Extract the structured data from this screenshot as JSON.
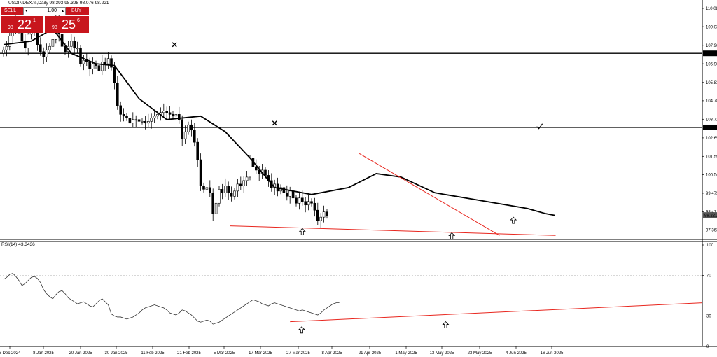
{
  "header": {
    "title": "USDINDEX.fs,Daily  98.393 98.398 98.076 98.221"
  },
  "trade_panel": {
    "sell_label": "SELL",
    "buy_label": "BUY",
    "lot_value": "1.00",
    "lot_down": "▾",
    "lot_up": "▴",
    "sell_big": "98",
    "sell_main": "22",
    "sell_sup": "1",
    "buy_big": "98",
    "buy_main": "25",
    "buy_sup": "6"
  },
  "colors": {
    "accent_red": "#c8161d",
    "trendline": "#e8261e",
    "candle": "#000000",
    "background": "#ffffff"
  },
  "chart_data": [
    {
      "type": "candlestick",
      "symbol": "USDINDEX.fs",
      "timeframe": "Daily",
      "ohlc_readout": [
        98.393,
        98.398,
        98.076,
        98.221
      ],
      "price_labels": [
        "110.08",
        "109.03",
        "107.96",
        "107.50",
        "106.90",
        "105.83",
        "104.78",
        "103.72",
        "103.25",
        "102.65",
        "101.59",
        "100.54",
        "99.475",
        "98.41",
        "98.221",
        "97.363"
      ],
      "horizontal_lines": [
        107.5,
        103.25
      ],
      "x_labels": [
        "6 Dec 2024",
        "8 Jan 2025",
        "20 Jan 2025",
        "30 Jan 2025",
        "11 Feb 2025",
        "21 Feb 2025",
        "5 Mar 2025",
        "17 Mar 2025",
        "27 Mar 2025",
        "8 Apr 2025",
        "21 Apr 2025",
        "1 May 2025",
        "13 May 2025",
        "23 May 2025",
        "4 Jun 2025",
        "16 Jun 2025"
      ],
      "closes": [
        107.7,
        107.9,
        108.5,
        108.9,
        109.3,
        108.8,
        108.2,
        107.8,
        108.6,
        109.1,
        108.7,
        108.0,
        107.6,
        107.3,
        107.7,
        107.9,
        108.3,
        109.5,
        108.6,
        107.9,
        107.6,
        107.9,
        108.2,
        107.8,
        107.8,
        106.9,
        107.1,
        107.0,
        106.6,
        106.9,
        106.8,
        106.5,
        107.0,
        106.9,
        107.2,
        106.7,
        105.8,
        104.5,
        104.0,
        103.9,
        103.8,
        103.5,
        103.7,
        103.7,
        103.6,
        103.6,
        103.5,
        103.6,
        103.8,
        103.9,
        104.0,
        104.1,
        104.2,
        104.1,
        104.0,
        103.9,
        104.0,
        103.7,
        102.6,
        103.0,
        103.4,
        103.1,
        102.4,
        101.4,
        99.9,
        99.7,
        99.8,
        99.5,
        98.3,
        98.9,
        99.7,
        99.5,
        99.9,
        99.5,
        99.3,
        99.6,
        100.0,
        99.9,
        100.2,
        100.4,
        101.5,
        101.0,
        100.8,
        100.6,
        100.8,
        100.5,
        100.2,
        99.8,
        100.0,
        99.6,
        99.8,
        99.5,
        99.3,
        99.6,
        99.2,
        98.9,
        99.2,
        99.0,
        98.8,
        99.0,
        98.9,
        98.5,
        97.9,
        98.1,
        98.4,
        98.2
      ],
      "ma_points": [
        [
          0,
          108.0
        ],
        [
          9,
          108.2
        ],
        [
          16,
          108.9
        ],
        [
          22,
          107.5
        ],
        [
          30,
          106.9
        ],
        [
          36,
          106.8
        ],
        [
          44,
          104.9
        ],
        [
          53,
          103.7
        ],
        [
          64,
          103.9
        ],
        [
          72,
          103.0
        ],
        [
          80,
          101.5
        ],
        [
          88,
          99.8
        ],
        [
          100,
          99.4
        ],
        [
          112,
          99.8
        ],
        [
          121,
          100.6
        ],
        [
          129,
          100.4
        ],
        [
          140,
          99.5
        ],
        [
          150,
          99.2
        ],
        [
          160,
          98.9
        ],
        [
          170,
          98.6
        ],
        [
          176,
          98.3
        ],
        [
          179,
          98.2
        ]
      ],
      "trendlines": [
        {
          "from": [
            73.5,
            97.6
          ],
          "to": [
            179.2,
            97.05
          ]
        },
        {
          "from": [
            115.5,
            101.75
          ],
          "to": [
            161,
            97.05
          ]
        }
      ],
      "markers": [
        {
          "type": "x",
          "bar": 55.5,
          "value": 108.0
        },
        {
          "type": "x",
          "bar": 88,
          "value": 103.5
        },
        {
          "type": "check",
          "bar": 174,
          "value": 103.3
        },
        {
          "type": "up-arrow",
          "bar": 97,
          "value": 97.25
        },
        {
          "type": "up-arrow",
          "bar": 145.5,
          "value": 97.0
        },
        {
          "type": "up-arrow",
          "bar": 165.5,
          "value": 97.9
        }
      ]
    },
    {
      "type": "line",
      "indicator": "RSI(14) 43.3436",
      "y_labels": [
        "100",
        "70",
        "30",
        "0"
      ],
      "levels": [
        70,
        30
      ],
      "rsi": [
        66,
        68,
        71,
        72,
        69,
        65,
        60,
        62,
        65,
        68,
        69,
        67,
        63,
        56,
        52,
        49,
        47,
        51,
        54,
        55,
        52,
        48,
        46,
        44,
        42,
        43,
        44,
        42,
        40,
        39,
        42,
        45,
        47,
        44,
        41,
        32,
        30,
        29,
        29,
        28,
        27,
        28,
        29,
        31,
        33,
        36,
        38,
        39,
        40,
        41,
        40,
        39,
        38,
        36,
        33,
        32,
        31,
        33,
        36,
        35,
        33,
        31,
        28,
        25,
        24,
        25,
        26,
        25,
        22,
        23,
        24,
        26,
        28,
        30,
        32,
        34,
        36,
        38,
        40,
        42,
        44,
        46,
        45,
        44,
        42,
        41,
        40,
        42,
        43,
        42,
        41,
        40,
        39,
        38,
        37,
        36,
        35,
        36,
        35,
        34,
        33,
        32,
        31,
        33,
        36,
        38,
        40,
        42,
        43,
        43
      ],
      "trendline": {
        "from": [
          93,
          24.4
        ],
        "to": [
          190,
          43
        ]
      },
      "markers": [
        {
          "type": "up-arrow",
          "x": [
            96.8
          ],
          "value": 16
        },
        {
          "type": "up-arrow",
          "x": [
            143.5
          ],
          "value": 21
        }
      ]
    }
  ]
}
